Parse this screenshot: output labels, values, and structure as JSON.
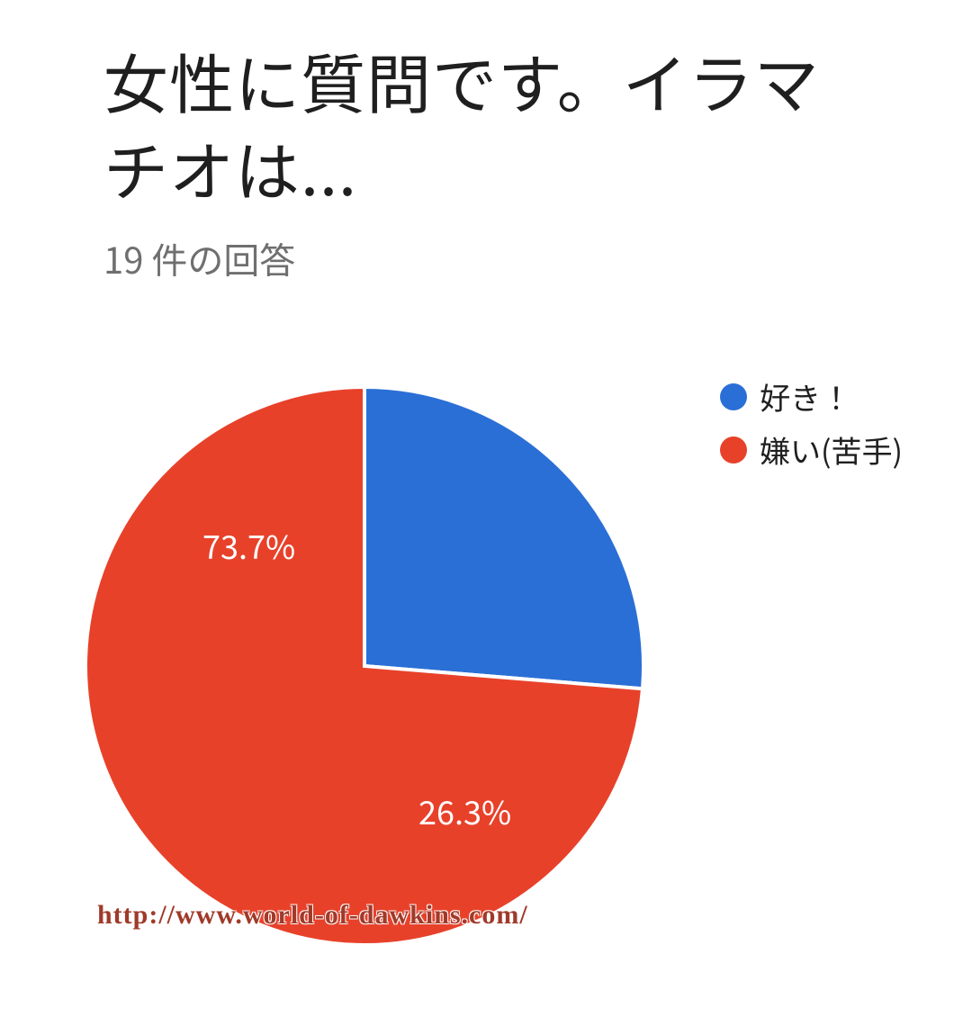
{
  "header": {
    "title": "女性に質問です。イラマチオは...",
    "responses_label": "19 件の回答"
  },
  "chart": {
    "type": "pie",
    "background_color": "#ffffff",
    "stroke_color": "#ffffff",
    "stroke_width": 4,
    "radius": 310,
    "slices": [
      {
        "key": "like",
        "label": "好き！",
        "value": 26.3,
        "display": "26.3%",
        "color": "#2a6fd6"
      },
      {
        "key": "dislike",
        "label": "嫌い(苦手)",
        "value": 73.7,
        "display": "73.7%",
        "color": "#e8412a"
      }
    ],
    "label_fontsize": 36,
    "label_color": "#ffffff",
    "legend": {
      "fontsize": 34,
      "dot_radius": 15,
      "text_color": "#1f1f1f"
    }
  },
  "watermark": {
    "text": "http://www.world-of-dawkins.com/",
    "color": "#a03a2a",
    "fontsize": 30
  }
}
